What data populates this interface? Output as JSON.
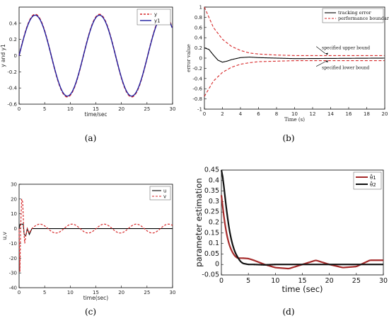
{
  "chart_data": [
    {
      "panel": "a",
      "caption": "(a)",
      "type": "line",
      "xlabel": "time/sec",
      "ylabel": "y and y1",
      "xlim": [
        0,
        30
      ],
      "ylim": [
        -0.6,
        0.6
      ],
      "xticks": [
        "0",
        "5",
        "10",
        "15",
        "20",
        "25",
        "30"
      ],
      "yticks": [
        "-0.6",
        "-0.4",
        "-0.2",
        "0",
        "0.2",
        "0.4"
      ],
      "legend_position": "top-right",
      "legend": [
        "y",
        "y1"
      ],
      "series": [
        {
          "name": "y",
          "style": "dashed",
          "color": "#d62728",
          "amplitude": 0.51,
          "period": 12.57
        },
        {
          "name": "y1",
          "style": "solid",
          "color": "#1f1f9f",
          "amplitude": 0.5,
          "period": 12.57
        }
      ],
      "x": [
        0,
        3.14,
        9.42,
        15.7,
        21.99,
        28.27,
        30
      ],
      "y_values": [
        0,
        0.5,
        -0.5,
        0.5,
        -0.5,
        0.5,
        0.33
      ]
    },
    {
      "panel": "b",
      "caption": "(b)",
      "type": "line",
      "xlabel": "Time (s)",
      "ylabel": "error value",
      "xlim": [
        0,
        20
      ],
      "ylim": [
        -1,
        1
      ],
      "xticks": [
        "0",
        "2",
        "4",
        "6",
        "8",
        "10",
        "12",
        "14",
        "16",
        "18",
        "20"
      ],
      "yticks": [
        "-1",
        "-0.8",
        "-0.6",
        "-0.4",
        "-0.2",
        "0",
        "0.2",
        "0.4",
        "0.6",
        "0.8",
        "1"
      ],
      "legend_position": "top-right",
      "legend": [
        "tracking error",
        "performance boundary"
      ],
      "annotations": [
        "specified upper bound",
        "specified lower bound"
      ],
      "series": [
        {
          "name": "tracking error",
          "style": "solid",
          "color": "#000000",
          "x": [
            0,
            0.5,
            1,
            1.5,
            2,
            2.5,
            3,
            4,
            5,
            6,
            8,
            10,
            20
          ],
          "values": [
            0.2,
            0.17,
            0.06,
            -0.04,
            -0.08,
            -0.06,
            -0.03,
            0.01,
            0.02,
            0.01,
            0,
            -0.01,
            0
          ]
        },
        {
          "name": "performance boundary (upper)",
          "style": "dashed",
          "color": "#d62728",
          "x": [
            0,
            1,
            2,
            3,
            4,
            5,
            6,
            8,
            10,
            20
          ],
          "values": [
            1.0,
            0.6,
            0.37,
            0.23,
            0.15,
            0.1,
            0.08,
            0.06,
            0.05,
            0.05
          ]
        },
        {
          "name": "performance boundary (lower)",
          "style": "dashed",
          "color": "#d62728",
          "x": [
            0,
            1,
            2,
            3,
            4,
            5,
            6,
            8,
            10,
            20
          ],
          "values": [
            -0.75,
            -0.45,
            -0.28,
            -0.18,
            -0.12,
            -0.09,
            -0.07,
            -0.06,
            -0.05,
            -0.05
          ]
        }
      ]
    },
    {
      "panel": "c",
      "caption": "(c)",
      "type": "line",
      "xlabel": "time(sec)",
      "ylabel": "u,v",
      "xlim": [
        0,
        30
      ],
      "ylim": [
        -40,
        30
      ],
      "xticks": [
        "0",
        "5",
        "10",
        "15",
        "20",
        "25",
        "30"
      ],
      "yticks": [
        "-40",
        "-30",
        "-20",
        "-10",
        "0",
        "10",
        "20",
        "30"
      ],
      "legend_position": "top-right",
      "legend": [
        "u",
        "v"
      ],
      "series": [
        {
          "name": "u",
          "style": "solid",
          "color": "#000000",
          "x": [
            0,
            0.2,
            0.5,
            0.8,
            1.0,
            1.3,
            1.6,
            2.0,
            2.5,
            30
          ],
          "values": [
            0,
            3,
            3,
            3,
            -4,
            -5,
            0,
            -4,
            0,
            0
          ]
        },
        {
          "name": "v",
          "style": "dashed",
          "color": "#d62728",
          "x": [
            0,
            0.15,
            0.3,
            0.5,
            0.7,
            0.9,
            1.1,
            1.3,
            1.6,
            2.0,
            2.5
          ],
          "values": [
            0,
            -31,
            0,
            20,
            18,
            0,
            -10,
            -5,
            0,
            -3,
            0
          ]
        }
      ],
      "steady_state": {
        "amplitude": 3,
        "period": 6.28
      }
    },
    {
      "panel": "d",
      "caption": "(d)",
      "type": "line",
      "xlabel": "time (sec)",
      "ylabel": "parameter estimation",
      "xlim": [
        0,
        30
      ],
      "ylim": [
        -0.05,
        0.45
      ],
      "xticks": [
        "0",
        "5",
        "10",
        "15",
        "20",
        "25",
        "30"
      ],
      "yticks": [
        "-0.05",
        "0",
        "0.05",
        "0.1",
        "0.15",
        "0.2",
        "0.25",
        "0.3",
        "0.35",
        "0.4",
        "0.45"
      ],
      "legend_position": "top-right",
      "legend": [
        "θ̂1",
        "θ̂2"
      ],
      "series": [
        {
          "name": "θ̂1",
          "style": "solid",
          "color": "#a52a2a",
          "x": [
            0,
            0.5,
            1,
            1.5,
            2,
            2.5,
            3,
            4,
            5,
            6,
            8,
            10,
            12.5,
            15,
            17.5,
            20,
            22.5,
            25,
            27.5,
            30
          ],
          "values": [
            0.33,
            0.22,
            0.14,
            0.09,
            0.06,
            0.04,
            0.03,
            0.03,
            0.028,
            0.02,
            0.0,
            -0.015,
            -0.02,
            0.0,
            0.02,
            0.0,
            -0.015,
            -0.01,
            0.02,
            0.02
          ]
        },
        {
          "name": "θ̂2",
          "style": "solid",
          "color": "#111111",
          "x": [
            0,
            0.3,
            0.6,
            1,
            1.5,
            2,
            2.5,
            3,
            3.5,
            4,
            5,
            6,
            8,
            10,
            15,
            20,
            25,
            30
          ],
          "values": [
            0.45,
            0.41,
            0.34,
            0.25,
            0.16,
            0.1,
            0.06,
            0.035,
            0.015,
            0.005,
            0.0,
            0.0,
            -0.002,
            0.0,
            0.0,
            0.0,
            0.0,
            0.0
          ]
        }
      ]
    }
  ]
}
